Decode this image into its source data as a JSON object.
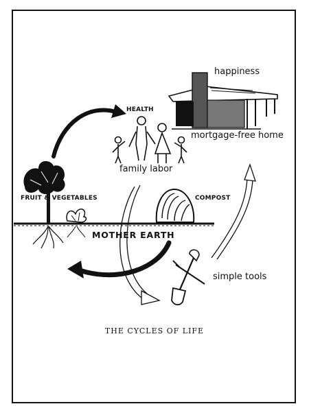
{
  "diagram": {
    "labels": {
      "happiness": "happiness",
      "health": "HEALTH",
      "home": "mortgage-free home",
      "family_labor": "family labor",
      "fruit_vegetables": "FRUIT & VEGETABLES",
      "compost": "COMPOST",
      "mother_earth": "MOTHER EARTH",
      "simple_tools": "simple tools"
    },
    "caption": "THE CYCLES OF LIFE"
  }
}
